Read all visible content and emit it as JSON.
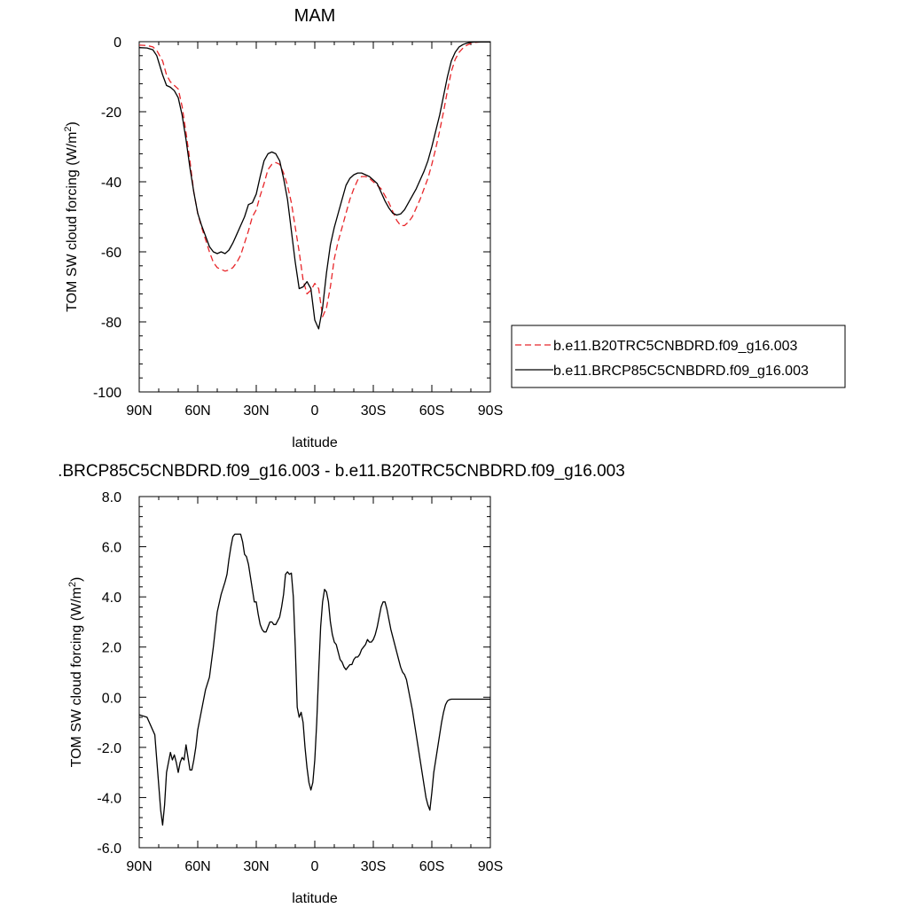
{
  "chart_data": [
    {
      "type": "line",
      "title": "MAM",
      "xlabel": "latitude",
      "ylabel": "TOM SW cloud forcing (W/m",
      "ylabel_sup": "2",
      "ylabel_close": ")",
      "xlim": [
        90,
        -90
      ],
      "ylim": [
        -100,
        0
      ],
      "xticks": [
        90,
        60,
        30,
        0,
        -30,
        -60,
        -90
      ],
      "xtick_labels": [
        "90N",
        "60N",
        "30N",
        "0",
        "30S",
        "60S",
        "90S"
      ],
      "yticks": [
        0,
        -20,
        -40,
        -60,
        -80,
        -100
      ],
      "ytick_labels": [
        "0",
        "-20",
        "-40",
        "-60",
        "-80",
        "-100"
      ],
      "grid": false,
      "legend_position": "right",
      "series": [
        {
          "name": "b.e11.B20TRC5CNBDRD.f09_g16.003",
          "color": "#e8262a",
          "dash": "dashed",
          "x": [
            90,
            86,
            83,
            81,
            78,
            76,
            74,
            72,
            70,
            68,
            66,
            64,
            62,
            60,
            58,
            56,
            54,
            52,
            50,
            48,
            46,
            44,
            42,
            40,
            38,
            36,
            34,
            32,
            30,
            28,
            26,
            24,
            22,
            20,
            18,
            16,
            14,
            12,
            10,
            8,
            6,
            4,
            2,
            0,
            -2,
            -4,
            -6,
            -8,
            -10,
            -12,
            -14,
            -16,
            -18,
            -20,
            -22,
            -24,
            -26,
            -28,
            -30,
            -32,
            -34,
            -36,
            -38,
            -40,
            -42,
            -44,
            -46,
            -48,
            -50,
            -52,
            -54,
            -56,
            -58,
            -60,
            -62,
            -64,
            -66,
            -68,
            -70,
            -72,
            -74,
            -76,
            -78,
            -80,
            -82,
            -85,
            -90
          ],
          "y": [
            -1.0,
            -1.1,
            -1.5,
            -2.5,
            -5.5,
            -9.5,
            -11.5,
            -12.5,
            -13.5,
            -18.5,
            -26.0,
            -34.0,
            -43.0,
            -49.0,
            -53.0,
            -56.5,
            -60.0,
            -63.0,
            -64.5,
            -65.0,
            -65.5,
            -65.2,
            -64.5,
            -63.0,
            -61.0,
            -57.5,
            -54.0,
            -50.0,
            -48.0,
            -44.0,
            -40.5,
            -36.5,
            -35.0,
            -34.5,
            -35.0,
            -37.5,
            -41.0,
            -46.0,
            -53.0,
            -60.0,
            -68.0,
            -72.0,
            -71.0,
            -69.0,
            -70.5,
            -78.5,
            -76.0,
            -70.0,
            -62.0,
            -57.0,
            -53.0,
            -49.0,
            -45.0,
            -42.0,
            -39.5,
            -38.5,
            -38.5,
            -39.0,
            -40.0,
            -41.0,
            -42.0,
            -44.0,
            -46.0,
            -48.5,
            -51.0,
            -52.5,
            -52.5,
            -51.5,
            -50.0,
            -47.5,
            -45.0,
            -42.0,
            -39.0,
            -35.0,
            -30.5,
            -25.5,
            -20.0,
            -14.0,
            -8.5,
            -5.0,
            -3.0,
            -1.8,
            -1.0,
            -0.5,
            -0.2,
            -0.1,
            -0.1
          ]
        },
        {
          "name": "b.e11.BRCP85C5CNBDRD.f09_g16.003",
          "color": "#000000",
          "dash": "solid",
          "x": [
            90,
            86,
            83,
            81,
            78,
            76,
            74,
            72,
            70,
            68,
            66,
            64,
            62,
            60,
            58,
            56,
            54,
            52,
            50,
            48,
            46,
            44,
            42,
            40,
            38,
            36,
            34,
            32,
            30,
            28,
            26,
            24,
            22,
            20,
            18,
            16,
            14,
            12,
            10,
            8,
            6,
            4,
            2,
            0,
            -2,
            -4,
            -6,
            -8,
            -10,
            -12,
            -14,
            -16,
            -18,
            -20,
            -22,
            -24,
            -26,
            -28,
            -30,
            -32,
            -34,
            -36,
            -38,
            -40,
            -42,
            -44,
            -46,
            -48,
            -50,
            -52,
            -54,
            -56,
            -58,
            -60,
            -62,
            -64,
            -66,
            -68,
            -70,
            -72,
            -74,
            -76,
            -78,
            -80,
            -82,
            -85,
            -90
          ],
          "y": [
            -1.7,
            -1.8,
            -2.3,
            -4.0,
            -9.5,
            -12.5,
            -13.0,
            -14.0,
            -16.0,
            -21.0,
            -28.0,
            -36.0,
            -43.0,
            -49.0,
            -52.5,
            -55.5,
            -58.5,
            -60.0,
            -60.5,
            -60.0,
            -60.5,
            -59.5,
            -57.5,
            -55.0,
            -52.5,
            -50.0,
            -46.5,
            -46.0,
            -43.5,
            -38.5,
            -34.0,
            -32.0,
            -31.5,
            -32.0,
            -34.0,
            -39.0,
            -45.0,
            -54.0,
            -63.0,
            -70.5,
            -70.0,
            -68.5,
            -70.5,
            -79.5,
            -82.0,
            -76.0,
            -66.0,
            -58.0,
            -53.0,
            -49.0,
            -45.0,
            -41.0,
            -39.0,
            -38.0,
            -37.5,
            -37.5,
            -38.0,
            -38.5,
            -39.5,
            -40.5,
            -43.0,
            -45.5,
            -47.5,
            -49.0,
            -49.5,
            -49.2,
            -48.0,
            -46.0,
            -44.0,
            -42.0,
            -39.5,
            -37.0,
            -34.0,
            -30.0,
            -25.5,
            -21.0,
            -15.5,
            -10.0,
            -5.5,
            -3.0,
            -1.5,
            -0.8,
            -0.4,
            -0.2,
            -0.1,
            -0.1,
            -0.1
          ]
        }
      ]
    },
    {
      "type": "line",
      "title": ".BRCP85C5CNBDRD.f09_g16.003 - b.e11.B20TRC5CNBDRD.f09_g16.003",
      "xlabel": "latitude",
      "ylabel": "TOM SW cloud forcing (W/m",
      "ylabel_sup": "2",
      "ylabel_close": ")",
      "xlim": [
        90,
        -90
      ],
      "ylim": [
        -6,
        8
      ],
      "xticks": [
        90,
        60,
        30,
        0,
        -30,
        -60,
        -90
      ],
      "xtick_labels": [
        "90N",
        "60N",
        "30N",
        "0",
        "30S",
        "60S",
        "90S"
      ],
      "yticks": [
        8,
        6,
        4,
        2,
        0,
        -2,
        -4,
        -6
      ],
      "ytick_labels": [
        "8.0",
        "6.0",
        "4.0",
        "2.0",
        "0.0",
        "-2.0",
        "-4.0",
        "-6.0"
      ],
      "grid": false,
      "series": [
        {
          "color": "#000000",
          "dash": "solid",
          "x": [
            90,
            86,
            82,
            80,
            79,
            78,
            77,
            76,
            75,
            74,
            73,
            72,
            71,
            70,
            69,
            68,
            67,
            66,
            65,
            64,
            63,
            62,
            61,
            60,
            58,
            56,
            54,
            52,
            50,
            48,
            46,
            45,
            44,
            43,
            42,
            41,
            40,
            39,
            38,
            37,
            36,
            35,
            34,
            33,
            32,
            31,
            30,
            29,
            28,
            27,
            26,
            25,
            24,
            23,
            22,
            21,
            20,
            18,
            17,
            16,
            15,
            14,
            13,
            12,
            11,
            10,
            9,
            8,
            7,
            6,
            5,
            4,
            3,
            2,
            1,
            0,
            -1,
            -2,
            -3,
            -4,
            -5,
            -6,
            -7,
            -8,
            -9,
            -10,
            -11,
            -12,
            -13,
            -14,
            -15,
            -16,
            -17,
            -18,
            -19,
            -20,
            -21,
            -22,
            -23,
            -24,
            -25,
            -26,
            -27,
            -28,
            -29,
            -30,
            -31,
            -32,
            -33,
            -34,
            -35,
            -36,
            -37,
            -38,
            -39,
            -40,
            -41,
            -42,
            -43,
            -44,
            -45,
            -46,
            -47,
            -48,
            -49,
            -50,
            -51,
            -52,
            -53,
            -54,
            -55,
            -56,
            -57,
            -58,
            -59,
            -60,
            -61,
            -62,
            -63,
            -64,
            -65,
            -66,
            -67,
            -68,
            -69,
            -70,
            -71,
            -72,
            -73,
            -74,
            -75,
            -76,
            -77,
            -78,
            -80,
            -82,
            -86,
            -90
          ],
          "y": [
            -0.7,
            -0.8,
            -1.5,
            -3.5,
            -4.5,
            -5.1,
            -4.3,
            -3.0,
            -2.6,
            -2.2,
            -2.5,
            -2.3,
            -2.6,
            -3.0,
            -2.6,
            -2.4,
            -2.5,
            -1.9,
            -2.4,
            -2.9,
            -2.9,
            -2.5,
            -2.0,
            -1.3,
            -0.5,
            0.3,
            0.8,
            2.0,
            3.4,
            4.1,
            4.6,
            4.9,
            5.5,
            6.0,
            6.4,
            6.5,
            6.5,
            6.5,
            6.5,
            6.2,
            5.7,
            5.6,
            5.3,
            4.8,
            4.3,
            3.8,
            3.8,
            3.3,
            2.9,
            2.7,
            2.6,
            2.6,
            2.8,
            3.0,
            3.0,
            2.9,
            2.9,
            3.2,
            3.6,
            4.1,
            4.9,
            5.0,
            4.9,
            4.95,
            4.0,
            2.0,
            -0.4,
            -0.8,
            -0.6,
            -1.0,
            -2.0,
            -2.8,
            -3.4,
            -3.7,
            -3.4,
            -2.5,
            -1.0,
            1.0,
            2.8,
            3.8,
            4.3,
            4.2,
            3.8,
            3.0,
            2.5,
            2.2,
            2.1,
            1.8,
            1.5,
            1.4,
            1.2,
            1.1,
            1.2,
            1.3,
            1.3,
            1.5,
            1.6,
            1.6,
            1.7,
            1.9,
            2.0,
            2.1,
            2.3,
            2.2,
            2.2,
            2.3,
            2.5,
            2.8,
            3.2,
            3.6,
            3.8,
            3.8,
            3.5,
            3.1,
            2.7,
            2.4,
            2.1,
            1.8,
            1.5,
            1.2,
            1.0,
            0.9,
            0.7,
            0.3,
            -0.1,
            -0.5,
            -1.0,
            -1.5,
            -2.0,
            -2.5,
            -3.0,
            -3.5,
            -4.0,
            -4.3,
            -4.5,
            -3.8,
            -3.0,
            -2.5,
            -2.0,
            -1.5,
            -1.0,
            -0.6,
            -0.3,
            -0.15,
            -0.1,
            -0.08,
            -0.08,
            -0.08,
            -0.08,
            -0.08,
            -0.08,
            -0.08,
            -0.08,
            -0.08,
            -0.08,
            -0.08,
            -0.08,
            -0.08
          ]
        }
      ]
    }
  ]
}
